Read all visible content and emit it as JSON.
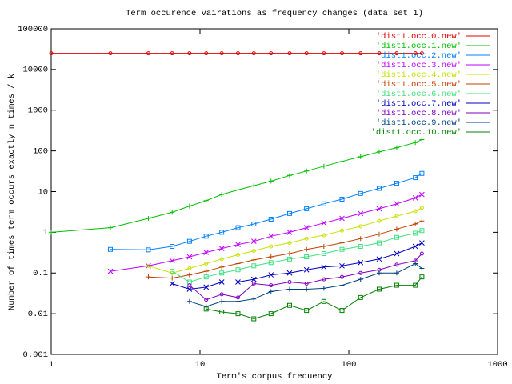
{
  "chart_data": {
    "type": "line",
    "title": "Term occurence vairations as frequency changes (data set 1)",
    "x_label": "Term's corpus frequency",
    "y_label": "Number of times term occurs exactly n times / k",
    "x_log": true,
    "y_log": true,
    "xlim": [
      1,
      1000
    ],
    "ylim": [
      0.001,
      100000
    ],
    "xticks": [
      1,
      10,
      100,
      1000
    ],
    "yticks": [
      0.001,
      0.01,
      0.1,
      1,
      10,
      100,
      1000,
      10000,
      100000
    ],
    "legend": "top-right",
    "x": [
      1,
      2.5,
      4.5,
      6.5,
      8.5,
      11,
      14,
      18,
      23,
      30,
      40,
      52,
      68,
      90,
      120,
      160,
      210,
      280,
      310
    ],
    "series": [
      {
        "name": "'dist1.occ.0.new'",
        "color": "#e00000",
        "values": [
          25000,
          25000,
          25000,
          25000,
          25000,
          25000,
          25000,
          25000,
          25000,
          25000,
          25000,
          25000,
          25000,
          25000,
          25000,
          25000,
          25000,
          25000,
          25000
        ]
      },
      {
        "name": "'dist1.occ.1.new'",
        "color": "#00c000",
        "values": [
          1,
          1.3,
          2.2,
          3.1,
          4.4,
          6,
          8.5,
          11,
          14,
          18,
          25,
          32,
          42,
          55,
          72,
          95,
          120,
          160,
          190
        ]
      },
      {
        "name": "'dist1.occ.2.new'",
        "color": "#0080ff",
        "values": [
          null,
          0.38,
          0.37,
          0.45,
          0.6,
          0.8,
          1.0,
          1.3,
          1.6,
          2.1,
          2.9,
          3.8,
          5,
          6.5,
          9,
          12,
          16,
          22,
          28
        ]
      },
      {
        "name": "'dist1.occ.3.new'",
        "color": "#c000ff",
        "values": [
          null,
          0.11,
          0.15,
          0.2,
          0.25,
          0.32,
          0.4,
          0.5,
          0.6,
          0.8,
          1.0,
          1.3,
          1.7,
          2.2,
          2.9,
          3.8,
          5,
          7,
          8.5
        ]
      },
      {
        "name": "'dist1.occ.4.new'",
        "color": "#c8e000",
        "values": [
          null,
          null,
          0.15,
          0.1,
          0.13,
          0.17,
          0.22,
          0.28,
          0.35,
          0.45,
          0.55,
          0.7,
          0.85,
          1.1,
          1.4,
          1.9,
          2.5,
          3.3,
          4
        ]
      },
      {
        "name": "'dist1.occ.5.new'",
        "color": "#c04000",
        "values": [
          null,
          null,
          0.08,
          0.075,
          0.09,
          0.11,
          0.14,
          0.17,
          0.21,
          0.25,
          0.3,
          0.38,
          0.45,
          0.55,
          0.7,
          0.9,
          1.2,
          1.6,
          1.9
        ]
      },
      {
        "name": "'dist1.occ.6.new'",
        "color": "#40e080",
        "values": [
          null,
          null,
          null,
          0.11,
          0.06,
          0.08,
          0.1,
          0.12,
          0.15,
          0.18,
          0.22,
          0.25,
          0.3,
          0.38,
          0.45,
          0.55,
          0.75,
          0.95,
          1.1
        ]
      },
      {
        "name": "'dist1.occ.7.new'",
        "color": "#0000c0",
        "values": [
          null,
          null,
          null,
          0.055,
          0.04,
          0.045,
          0.06,
          0.06,
          0.07,
          0.09,
          0.1,
          0.12,
          0.14,
          0.15,
          0.18,
          0.22,
          0.3,
          0.45,
          0.55
        ]
      },
      {
        "name": "'dist1.occ.8.new'",
        "color": "#8000c0",
        "values": [
          null,
          null,
          null,
          null,
          0.05,
          0.022,
          0.03,
          0.025,
          0.055,
          0.05,
          0.06,
          0.055,
          0.07,
          0.08,
          0.1,
          0.12,
          0.16,
          0.2,
          0.3
        ]
      },
      {
        "name": "'dist1.occ.9.new'",
        "color": "#004080",
        "values": [
          null,
          null,
          null,
          null,
          0.02,
          0.015,
          0.02,
          0.02,
          0.023,
          0.035,
          0.04,
          0.04,
          0.042,
          0.05,
          0.07,
          0.1,
          0.1,
          0.17,
          0.13
        ]
      },
      {
        "name": "'dist1.occ.10.new'",
        "color": "#008000",
        "values": [
          null,
          null,
          null,
          null,
          null,
          0.013,
          0.011,
          0.01,
          0.0075,
          0.01,
          0.016,
          0.012,
          0.02,
          0.012,
          0.025,
          0.04,
          0.05,
          0.05,
          0.08
        ]
      }
    ]
  }
}
